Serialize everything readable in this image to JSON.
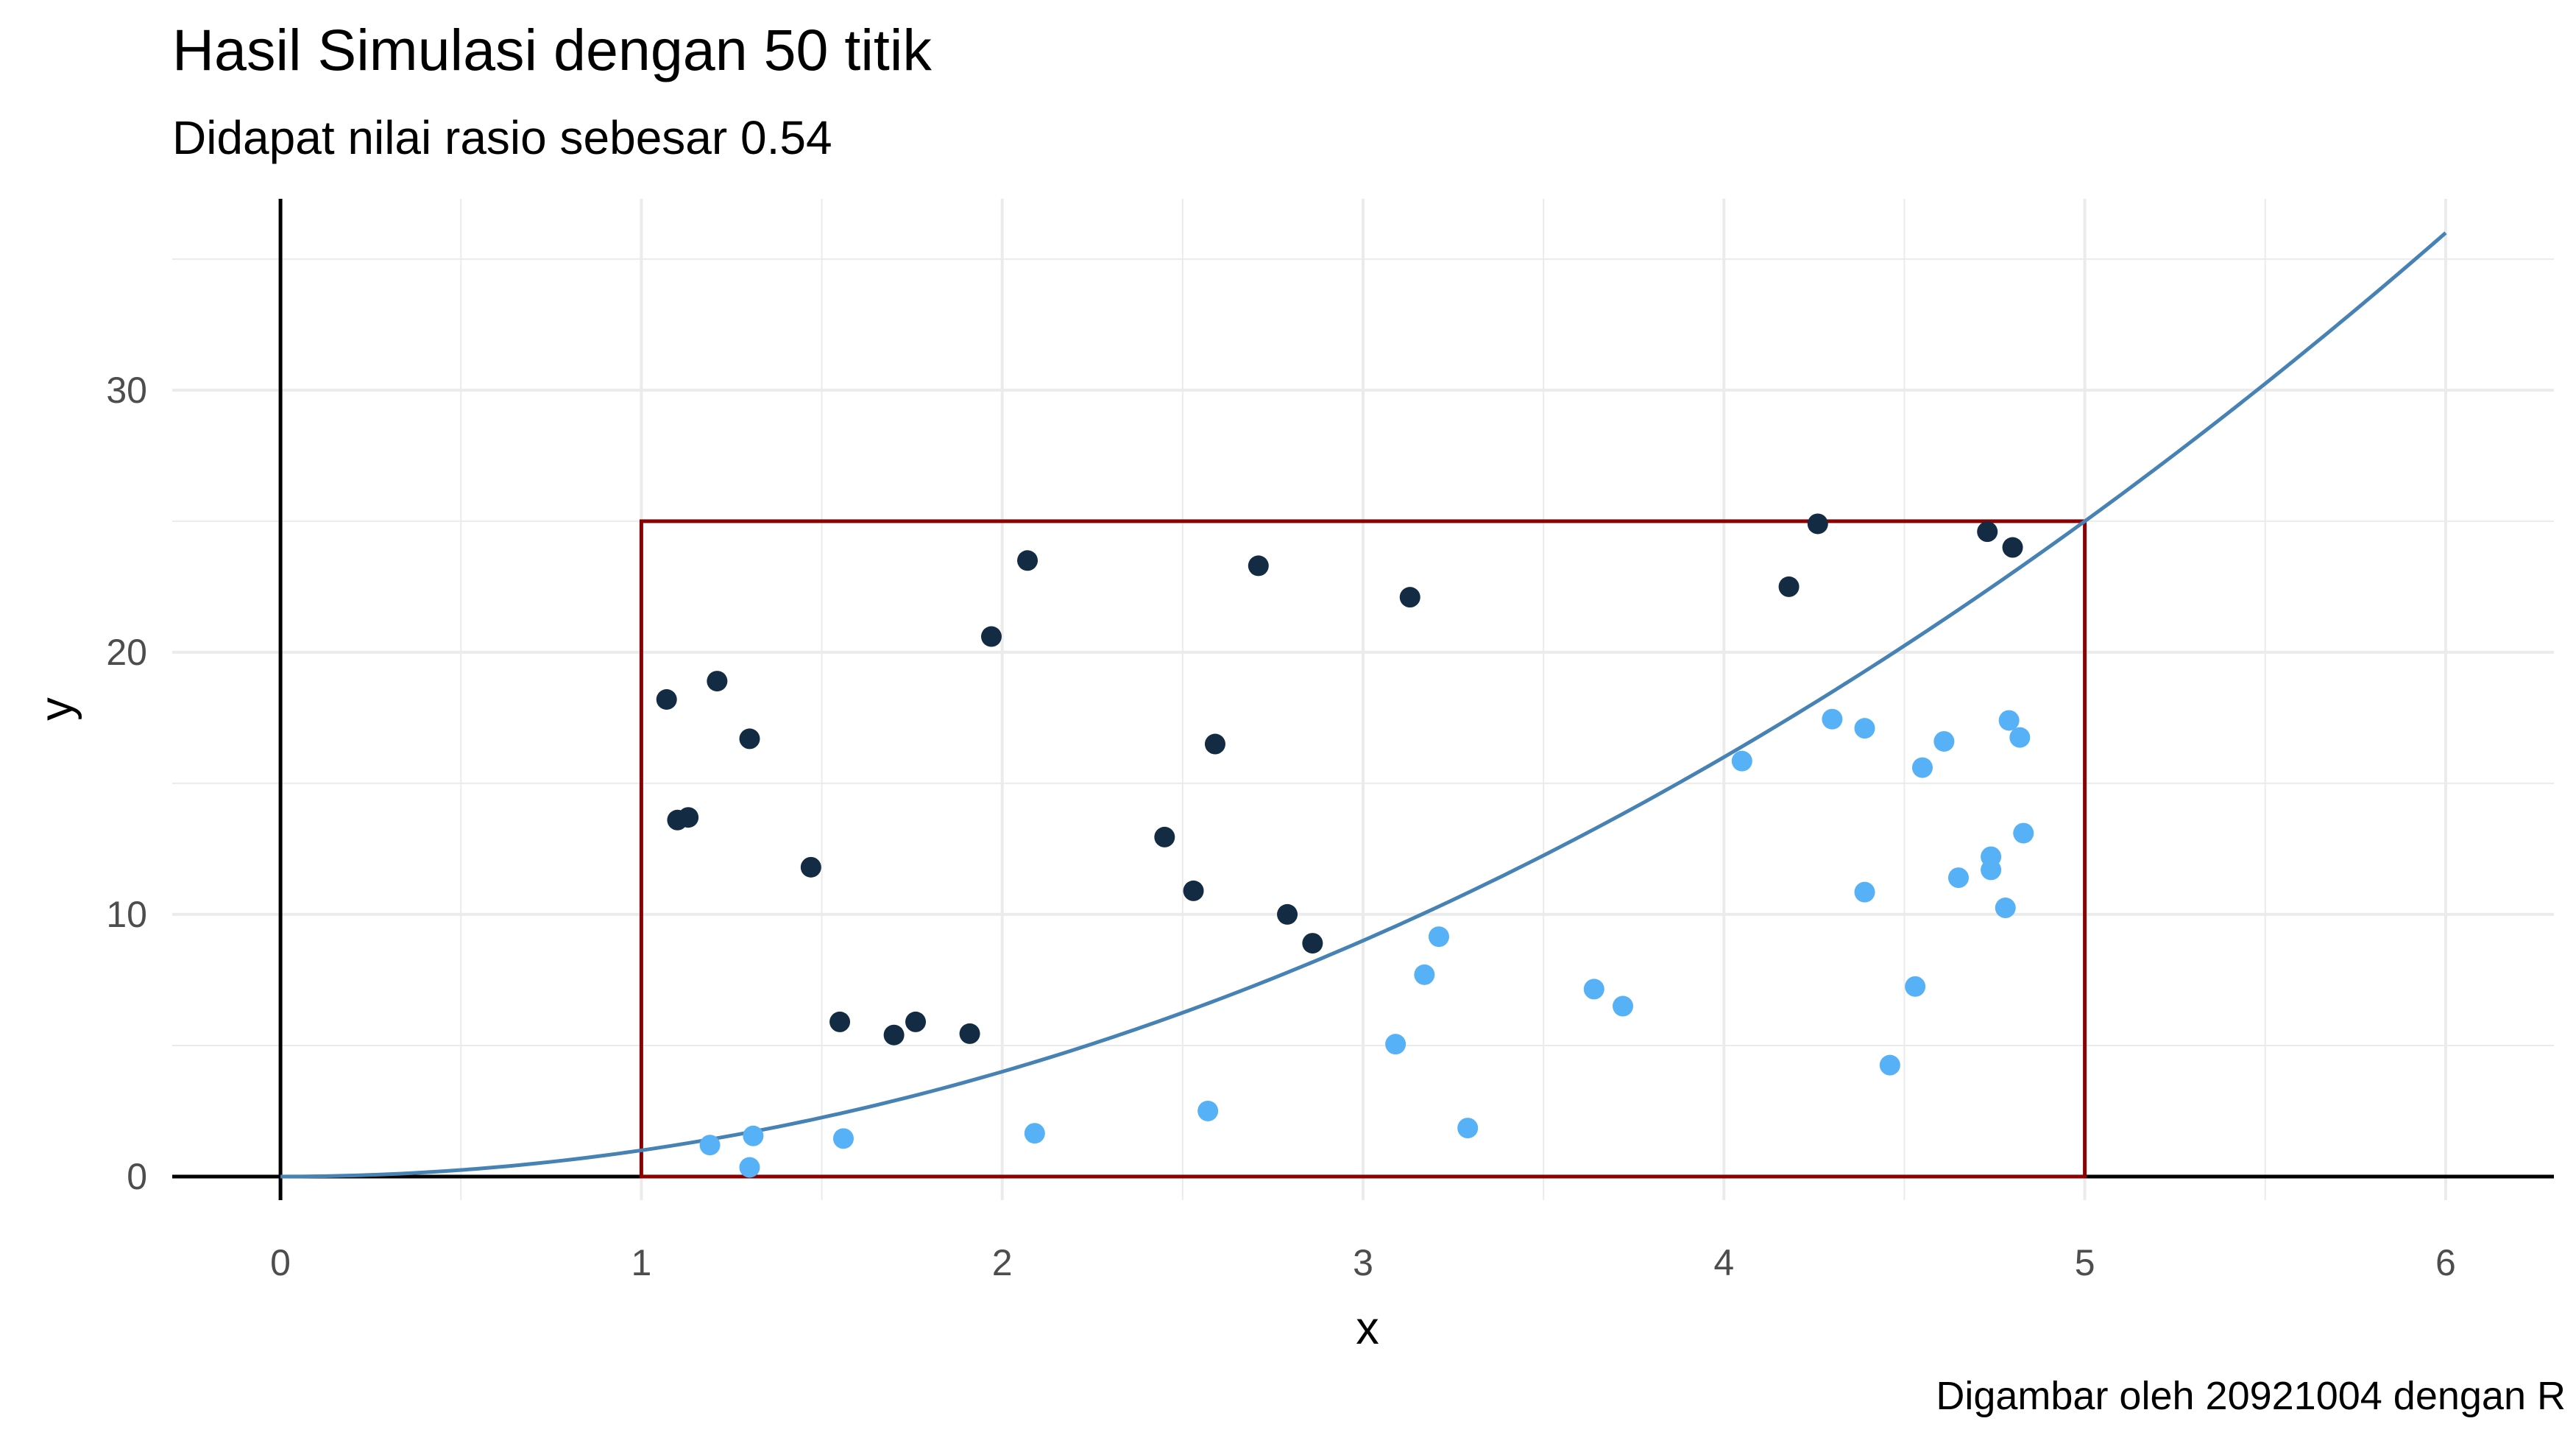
{
  "chart_data": {
    "type": "scatter",
    "title": "Hasil Simulasi dengan 50 titik",
    "subtitle": "Didapat nilai rasio sebesar 0.54",
    "caption": "Digambar oleh 20921004 dengan R",
    "xlabel": "x",
    "ylabel": "y",
    "xlim": [
      -0.3,
      6.3
    ],
    "ylim": [
      -0.9,
      37.3
    ],
    "x_ticks": [
      0,
      1,
      2,
      3,
      4,
      5,
      6
    ],
    "y_ticks": [
      0,
      10,
      20,
      30
    ],
    "x_tick_labels": [
      "0",
      "1",
      "2",
      "3",
      "4",
      "5",
      "6"
    ],
    "y_tick_labels": [
      "0",
      "10",
      "20",
      "30"
    ],
    "grid": true,
    "curve": {
      "label": "y = x^2",
      "x_range": [
        0,
        6
      ],
      "color": "#4682B4"
    },
    "rectangle": {
      "x": [
        1,
        5
      ],
      "y": [
        0,
        25
      ],
      "color": "#8B0000"
    },
    "colors": {
      "above": "#132B43",
      "below": "#56B1F7"
    },
    "series": [
      {
        "points": [
          [
            1.07,
            18.2
          ],
          [
            1.21,
            18.9
          ],
          [
            1.3,
            16.7
          ],
          [
            1.1,
            13.6
          ],
          [
            1.13,
            13.7
          ],
          [
            1.47,
            11.8
          ],
          [
            1.55,
            5.9
          ],
          [
            1.7,
            5.4
          ],
          [
            1.76,
            5.9
          ],
          [
            1.91,
            5.45
          ],
          [
            1.97,
            20.6
          ],
          [
            2.07,
            23.5
          ],
          [
            2.45,
            12.95
          ],
          [
            2.53,
            10.9
          ],
          [
            2.59,
            16.5
          ],
          [
            2.71,
            23.3
          ],
          [
            2.79,
            10.0
          ],
          [
            2.86,
            8.9
          ],
          [
            3.13,
            22.1
          ],
          [
            4.18,
            22.5
          ],
          [
            4.26,
            24.9
          ],
          [
            4.73,
            24.6
          ],
          [
            4.8,
            24.0
          ]
        ]
      },
      {
        "points": [
          [
            1.19,
            1.2
          ],
          [
            1.3,
            0.35
          ],
          [
            1.31,
            1.55
          ],
          [
            1.56,
            1.45
          ],
          [
            2.09,
            1.65
          ],
          [
            2.57,
            2.5
          ],
          [
            3.09,
            5.05
          ],
          [
            3.17,
            7.7
          ],
          [
            3.21,
            9.15
          ],
          [
            3.29,
            1.85
          ],
          [
            3.64,
            7.15
          ],
          [
            3.72,
            6.5
          ],
          [
            4.05,
            15.85
          ],
          [
            4.3,
            17.45
          ],
          [
            4.39,
            17.1
          ],
          [
            4.39,
            10.85
          ],
          [
            4.46,
            4.25
          ],
          [
            4.53,
            7.25
          ],
          [
            4.55,
            15.6
          ],
          [
            4.61,
            16.6
          ],
          [
            4.65,
            11.4
          ],
          [
            4.74,
            12.2
          ],
          [
            4.74,
            11.7
          ],
          [
            4.78,
            10.25
          ],
          [
            4.79,
            17.4
          ],
          [
            4.82,
            16.75
          ],
          [
            4.83,
            13.1
          ]
        ]
      }
    ]
  }
}
